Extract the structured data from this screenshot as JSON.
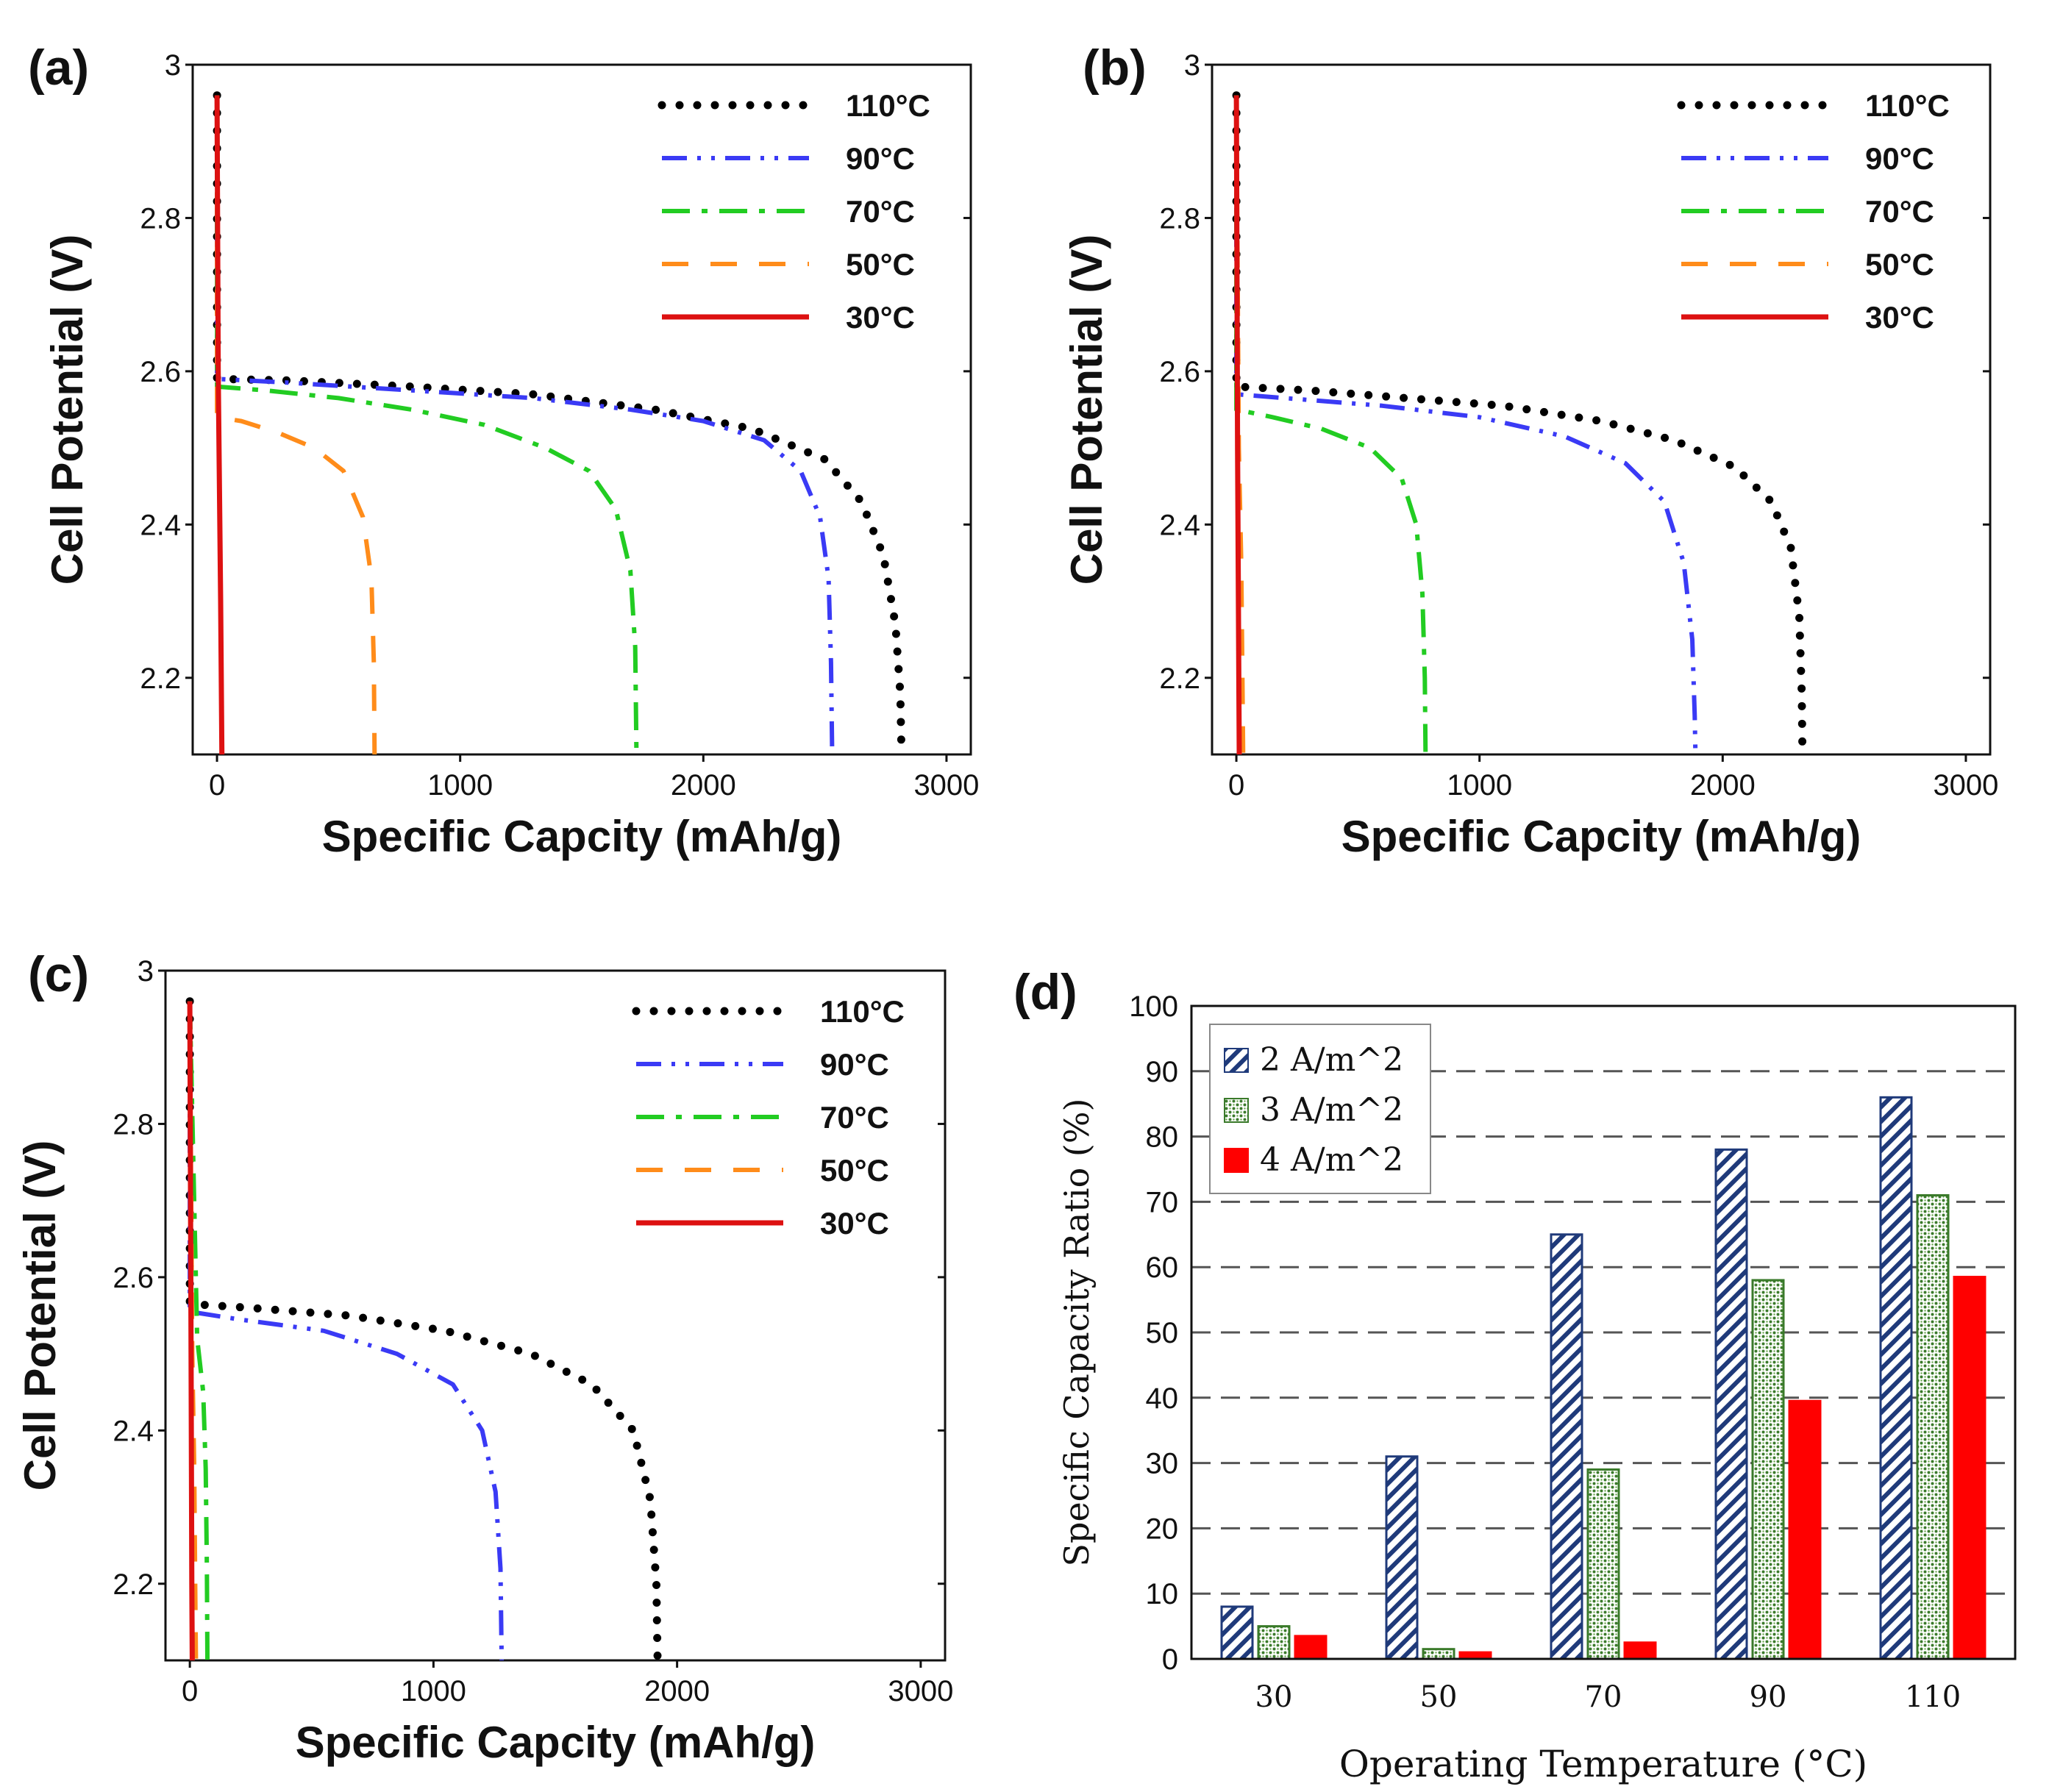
{
  "chart_data": [
    {
      "type": "line",
      "panel_label": "(a)",
      "xlabel": "Specific Capcity (mAh/g)",
      "ylabel": "Cell Potential (V)",
      "xlim": [
        -100,
        3100
      ],
      "ylim": [
        2.1,
        3.0
      ],
      "xticks": [
        "0",
        "1000",
        "2000",
        "3000"
      ],
      "yticks": [
        "2.2",
        "2.4",
        "2.6",
        "2.8",
        "3"
      ],
      "legend_position": "top-right",
      "series": [
        {
          "name": "110°C",
          "style": "dotted",
          "color": "#000000",
          "x": [
            0,
            0,
            0,
            300,
            800,
            1300,
            1800,
            2200,
            2500,
            2650,
            2740,
            2790,
            2810,
            2815
          ],
          "y": [
            2.96,
            2.75,
            2.59,
            2.588,
            2.58,
            2.57,
            2.55,
            2.525,
            2.485,
            2.43,
            2.36,
            2.27,
            2.18,
            2.1
          ]
        },
        {
          "name": "90°C",
          "style": "dash-dot-dot",
          "color": "#3a3af5",
          "x": [
            0,
            0,
            300,
            800,
            1300,
            1700,
            2000,
            2250,
            2400,
            2480,
            2515,
            2525,
            2530
          ],
          "y": [
            2.96,
            2.59,
            2.585,
            2.575,
            2.565,
            2.55,
            2.535,
            2.51,
            2.47,
            2.41,
            2.33,
            2.22,
            2.1
          ]
        },
        {
          "name": "70°C",
          "style": "dash-dot",
          "color": "#22cc22",
          "x": [
            0,
            0,
            200,
            500,
            800,
            1100,
            1350,
            1530,
            1640,
            1700,
            1720,
            1725
          ],
          "y": [
            2.96,
            2.58,
            2.575,
            2.565,
            2.55,
            2.53,
            2.5,
            2.47,
            2.42,
            2.34,
            2.24,
            2.1
          ]
        },
        {
          "name": "50°C",
          "style": "dashed",
          "color": "#ff8c1a",
          "x": [
            0,
            0,
            100,
            250,
            400,
            520,
            600,
            635,
            645,
            648
          ],
          "y": [
            2.96,
            2.54,
            2.535,
            2.52,
            2.5,
            2.47,
            2.41,
            2.33,
            2.22,
            2.1
          ]
        },
        {
          "name": "30°C",
          "style": "solid",
          "color": "#dd1111",
          "x": [
            0,
            5,
            15,
            20
          ],
          "y": [
            2.96,
            2.6,
            2.3,
            2.1
          ]
        }
      ]
    },
    {
      "type": "line",
      "panel_label": "(b)",
      "xlabel": "Specific Capcity (mAh/g)",
      "ylabel": "Cell Potential (V)",
      "xlim": [
        -100,
        3100
      ],
      "ylim": [
        2.1,
        3.0
      ],
      "xticks": [
        "0",
        "1000",
        "2000",
        "3000"
      ],
      "yticks": [
        "2.2",
        "2.4",
        "2.6",
        "2.8",
        "3"
      ],
      "legend_position": "top-right",
      "series": [
        {
          "name": "110°C",
          "style": "dotted",
          "color": "#000000",
          "x": [
            0,
            0,
            0,
            300,
            700,
            1100,
            1500,
            1800,
            2050,
            2200,
            2280,
            2315,
            2325,
            2328
          ],
          "y": [
            2.96,
            2.75,
            2.58,
            2.575,
            2.565,
            2.555,
            2.535,
            2.51,
            2.475,
            2.43,
            2.37,
            2.28,
            2.18,
            2.1
          ]
        },
        {
          "name": "90°C",
          "style": "dash-dot-dot",
          "color": "#3a3af5",
          "x": [
            0,
            0,
            200,
            600,
            1000,
            1350,
            1600,
            1760,
            1840,
            1875,
            1885,
            1888
          ],
          "y": [
            2.96,
            2.57,
            2.565,
            2.555,
            2.54,
            2.515,
            2.48,
            2.43,
            2.35,
            2.25,
            2.15,
            2.1
          ]
        },
        {
          "name": "70°C",
          "style": "dash-dot",
          "color": "#22cc22",
          "x": [
            0,
            0,
            150,
            350,
            550,
            680,
            740,
            765,
            775,
            778
          ],
          "y": [
            2.96,
            2.55,
            2.54,
            2.525,
            2.5,
            2.46,
            2.4,
            2.31,
            2.2,
            2.1
          ]
        },
        {
          "name": "50°C",
          "style": "dashed",
          "color": "#ff8c1a",
          "x": [
            0,
            10,
            20,
            25,
            28
          ],
          "y": [
            2.96,
            2.5,
            2.35,
            2.2,
            2.1
          ]
        },
        {
          "name": "30°C",
          "style": "solid",
          "color": "#dd1111",
          "x": [
            0,
            5,
            10,
            12
          ],
          "y": [
            2.96,
            2.5,
            2.2,
            2.1
          ]
        }
      ]
    },
    {
      "type": "line",
      "panel_label": "(c)",
      "xlabel": "Specific Capcity (mAh/g)",
      "ylabel": "Cell Potential (V)",
      "xlim": [
        -100,
        3100
      ],
      "ylim": [
        2.1,
        3.0
      ],
      "xticks": [
        "0",
        "1000",
        "2000",
        "3000"
      ],
      "yticks": [
        "2.2",
        "2.4",
        "2.6",
        "2.8",
        "3"
      ],
      "legend_position": "top-right",
      "series": [
        {
          "name": "110°C",
          "style": "dotted",
          "color": "#000000",
          "x": [
            0,
            0,
            0,
            250,
            650,
            1050,
            1400,
            1650,
            1820,
            1890,
            1915,
            1920
          ],
          "y": [
            2.96,
            2.75,
            2.565,
            2.56,
            2.55,
            2.53,
            2.5,
            2.46,
            2.4,
            2.31,
            2.2,
            2.1
          ]
        },
        {
          "name": "90°C",
          "style": "dash-dot-dot",
          "color": "#3a3af5",
          "x": [
            0,
            0,
            200,
            550,
            850,
            1080,
            1200,
            1255,
            1275,
            1280
          ],
          "y": [
            2.96,
            2.555,
            2.545,
            2.53,
            2.5,
            2.46,
            2.4,
            2.32,
            2.22,
            2.1
          ]
        },
        {
          "name": "70°C",
          "style": "dash-dot",
          "color": "#22cc22",
          "x": [
            0,
            30,
            55,
            65,
            70,
            72
          ],
          "y": [
            2.96,
            2.52,
            2.45,
            2.35,
            2.22,
            2.1
          ]
        },
        {
          "name": "50°C",
          "style": "dashed",
          "color": "#ff8c1a",
          "x": [
            0,
            10,
            18,
            22,
            25
          ],
          "y": [
            2.96,
            2.5,
            2.35,
            2.2,
            2.1
          ]
        },
        {
          "name": "30°C",
          "style": "solid",
          "color": "#dd1111",
          "x": [
            0,
            5,
            8,
            10
          ],
          "y": [
            2.96,
            2.5,
            2.2,
            2.1
          ]
        }
      ]
    },
    {
      "type": "bar",
      "panel_label": "(d)",
      "xlabel": "Operating Temperature (°C)",
      "ylabel": "Specific Capacity Ratio (%)",
      "ylim": [
        0,
        100
      ],
      "yticks": [
        "0",
        "10",
        "20",
        "30",
        "40",
        "50",
        "60",
        "70",
        "80",
        "90",
        "100"
      ],
      "grid": "dashed horizontal",
      "legend_position": "top-left",
      "categories": [
        "30",
        "50",
        "70",
        "90",
        "110"
      ],
      "series": [
        {
          "name": "2 A/m^2",
          "pattern": "diagonal-hatch",
          "color": "#1f3a7a",
          "values": [
            8,
            31,
            65,
            78,
            86
          ]
        },
        {
          "name": "3 A/m^2",
          "pattern": "dotted",
          "color": "#3a7a2a",
          "values": [
            5,
            1.5,
            29,
            58,
            71
          ]
        },
        {
          "name": "4 A/m^2",
          "pattern": "solid",
          "color": "#ff0000",
          "values": [
            3.5,
            1,
            2.5,
            39.5,
            58.5
          ]
        }
      ]
    }
  ]
}
